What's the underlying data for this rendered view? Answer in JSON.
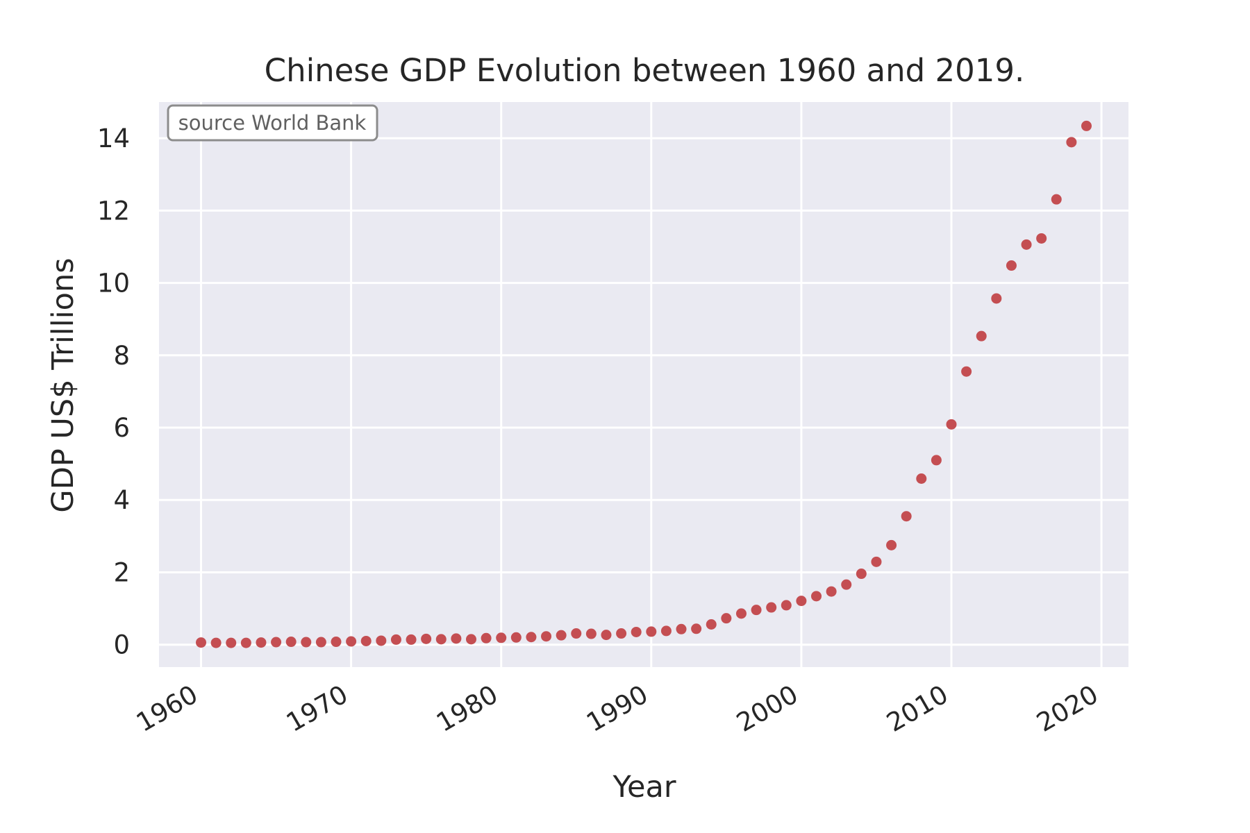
{
  "chart_data": {
    "type": "scatter",
    "title": "Chinese GDP Evolution between 1960 and 2019.",
    "xlabel": "Year",
    "ylabel": "GDP US$ Trillions",
    "annotation": "source World Bank",
    "xlim": [
      1957.2,
      2021.8
    ],
    "ylim": [
      -0.62,
      15.0
    ],
    "x_ticks": [
      1960,
      1970,
      1980,
      1990,
      2000,
      2010,
      2020
    ],
    "y_ticks": [
      0,
      2,
      4,
      6,
      8,
      10,
      12,
      14
    ],
    "grid": true,
    "colors": {
      "background": "#eaeaf2",
      "grid": "#ffffff",
      "marker": "#c44e52"
    },
    "x": [
      1960,
      1961,
      1962,
      1963,
      1964,
      1965,
      1966,
      1967,
      1968,
      1969,
      1970,
      1971,
      1972,
      1973,
      1974,
      1975,
      1976,
      1977,
      1978,
      1979,
      1980,
      1981,
      1982,
      1983,
      1984,
      1985,
      1986,
      1987,
      1988,
      1989,
      1990,
      1991,
      1992,
      1993,
      1994,
      1995,
      1996,
      1997,
      1998,
      1999,
      2000,
      2001,
      2002,
      2003,
      2004,
      2005,
      2006,
      2007,
      2008,
      2009,
      2010,
      2011,
      2012,
      2013,
      2014,
      2015,
      2016,
      2017,
      2018,
      2019
    ],
    "y": [
      0.06,
      0.05,
      0.05,
      0.05,
      0.06,
      0.07,
      0.08,
      0.07,
      0.07,
      0.08,
      0.09,
      0.1,
      0.11,
      0.14,
      0.14,
      0.16,
      0.15,
      0.17,
      0.15,
      0.18,
      0.19,
      0.2,
      0.21,
      0.23,
      0.26,
      0.31,
      0.3,
      0.27,
      0.31,
      0.35,
      0.36,
      0.38,
      0.43,
      0.44,
      0.56,
      0.73,
      0.86,
      0.96,
      1.03,
      1.09,
      1.21,
      1.34,
      1.47,
      1.66,
      1.96,
      2.29,
      2.75,
      3.55,
      4.59,
      5.1,
      6.09,
      7.55,
      8.53,
      9.57,
      10.48,
      11.06,
      11.23,
      12.31,
      13.89,
      14.34
    ]
  }
}
